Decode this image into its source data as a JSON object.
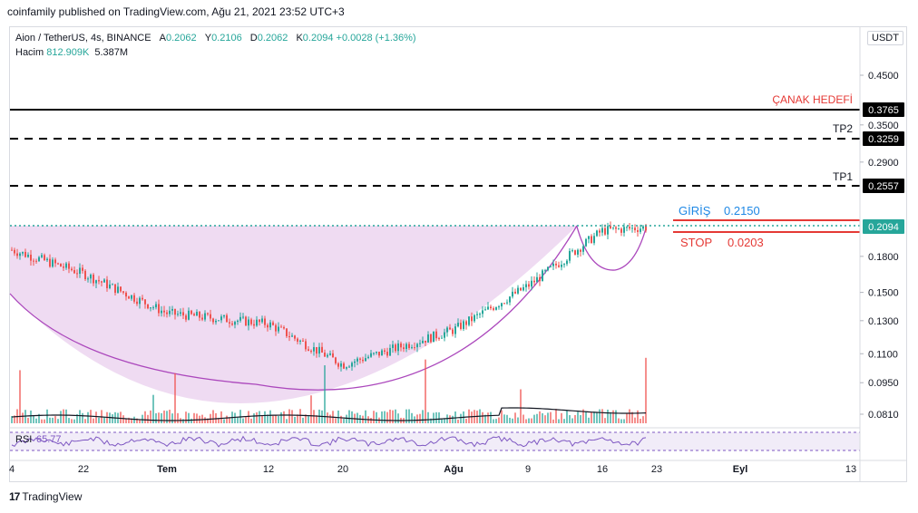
{
  "header": {
    "published": "coinfamily published on TradingView.com, Ağu 21, 2021 23:52 UTC+3"
  },
  "legend": {
    "symbol": "Aion / TetherUS, 4s, BINANCE",
    "open_label": "A",
    "open": "0.2062",
    "high_label": "Y",
    "high": "0.2106",
    "low_label": "D",
    "low": "0.2062",
    "close_label": "K",
    "close": "0.2094",
    "change": "+0.0028 (+1.36%)",
    "volume_label": "Hacim",
    "volume": "812.909K",
    "volume_ma": "5.387M"
  },
  "currency_button": "USDT",
  "footer": {
    "logo": "TradingView",
    "logo_mark": "17"
  },
  "chart_data": {
    "type": "candlestick",
    "symbol": "Aion / TetherUS",
    "interval": "4s",
    "exchange": "BINANCE",
    "y_scale": "log",
    "y_axis_ticks": [
      0.45,
      0.35,
      0.29,
      0.18,
      0.15,
      0.13,
      0.11,
      0.095,
      0.081
    ],
    "x_axis_ticks": [
      "4",
      "22",
      "Tem",
      "12",
      "20",
      "Ağu",
      "9",
      "16",
      "23",
      "Eyl",
      "13"
    ],
    "price_path_approx": [
      {
        "t": "4",
        "price": 0.186
      },
      {
        "t": "22",
        "price": 0.165
      },
      {
        "t": "Tem",
        "price": 0.135
      },
      {
        "t": "12",
        "price": 0.128
      },
      {
        "t": "20",
        "price": 0.104
      },
      {
        "t": "Ağu",
        "price": 0.124
      },
      {
        "t": "9",
        "price": 0.155
      },
      {
        "t": "16",
        "price": 0.205
      },
      {
        "t": "23",
        "price": 0.2094
      }
    ],
    "levels": [
      {
        "label": "ÇANAK HEDEFİ",
        "price": "0.3765",
        "style": "solid",
        "color": "#000000"
      },
      {
        "label": "TP2",
        "price": "0.3259",
        "style": "dashed",
        "color": "#000000"
      },
      {
        "label": "TP1",
        "price": "0.2557",
        "style": "dashed",
        "color": "#000000"
      },
      {
        "label": "GİRİŞ",
        "price": "0.2150",
        "style": "solid",
        "color": "#e53935"
      },
      {
        "label": "STOP",
        "price": "0.0203",
        "style": "solid",
        "color": "#e53935"
      }
    ],
    "last_price": "0.2094",
    "annotations": {
      "target_label": "ÇANAK HEDEFİ",
      "tp1_label": "TP1",
      "tp2_label": "TP2",
      "entry_label": "GİRİŞ",
      "entry_value": "0.2150",
      "stop_label": "STOP",
      "stop_value": "0.0203"
    },
    "pattern": "cup (rounded bottom)",
    "rsi": {
      "label": "RSI",
      "value": "65.77"
    },
    "colors": {
      "up": "#26a69a",
      "down": "#ef5350",
      "cup_fill": "#e1bee7",
      "cup_line": "#ab47bc",
      "rsi": "#7e57c2"
    }
  }
}
